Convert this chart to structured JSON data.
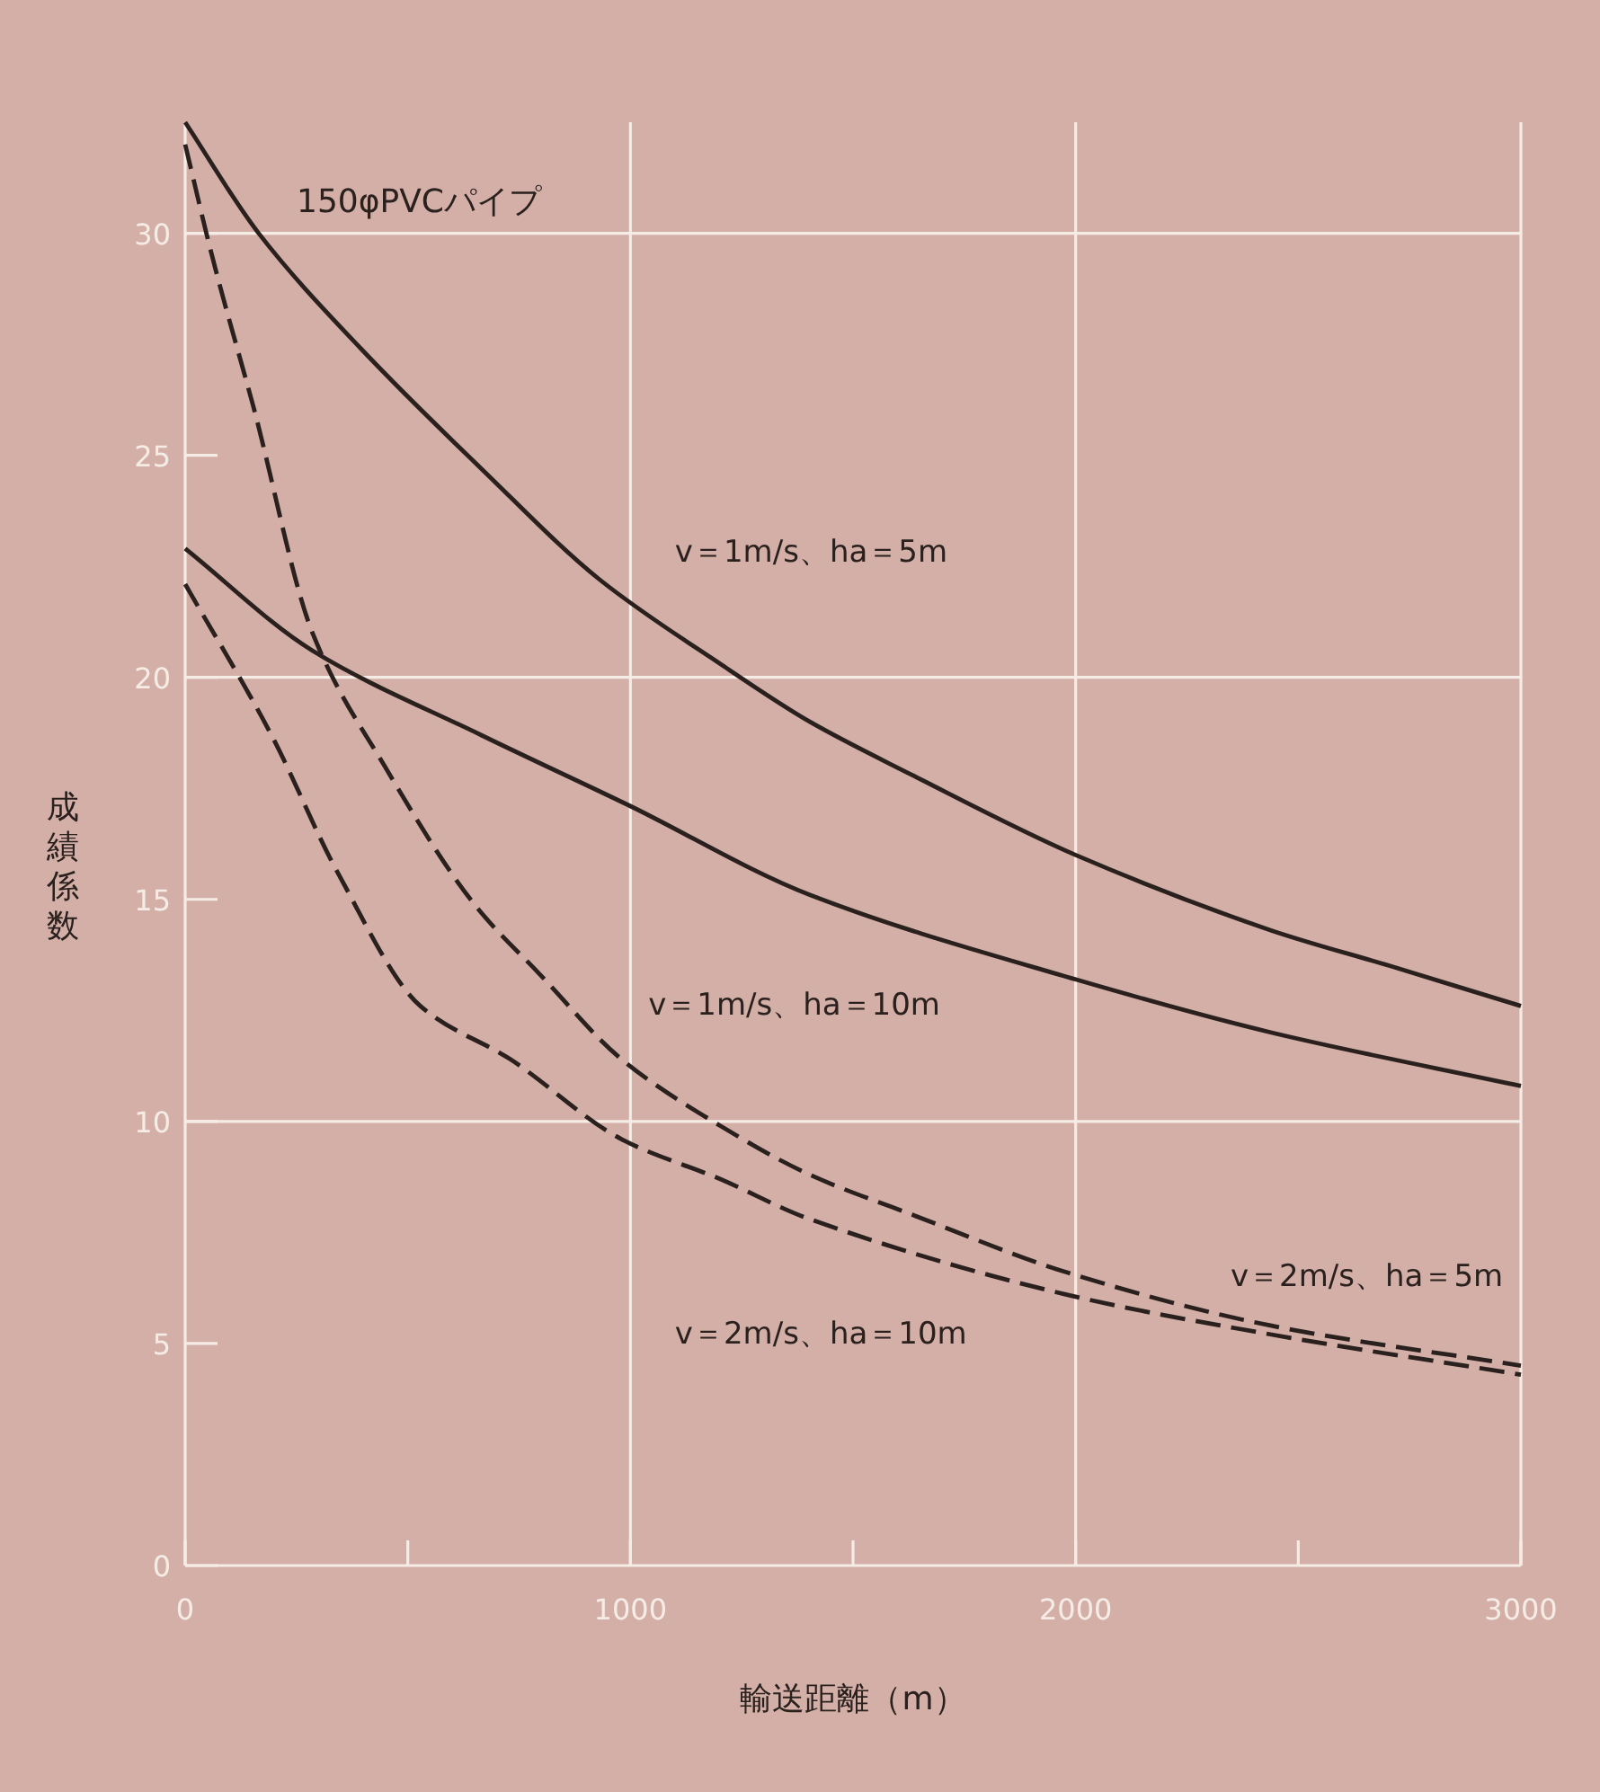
{
  "chart_data": {
    "type": "line",
    "xlabel": "輸送距離（m）",
    "ylabel": "成績係数",
    "annotations": [
      "150φPVCパイプ"
    ],
    "xlim": [
      0,
      3000
    ],
    "ylim": [
      0,
      32.5
    ],
    "xticks": [
      0,
      {
        "value": 500,
        "label": null
      },
      1000,
      {
        "value": 1500,
        "label": null
      },
      2000,
      {
        "value": 2500,
        "label": null
      },
      3000
    ],
    "yticks": [
      0,
      5,
      10,
      15,
      20,
      25,
      30
    ],
    "ref_lines": [
      {
        "axis": "y",
        "value": 10,
        "color": "#f6ece6"
      },
      {
        "axis": "y",
        "value": 20,
        "color": "#f6ece6"
      },
      {
        "axis": "y",
        "value": 30,
        "color": "#f6ece6"
      },
      {
        "axis": "x",
        "value": 1000,
        "color": "#f6ece6"
      },
      {
        "axis": "x",
        "value": 2000,
        "color": "#f6ece6"
      }
    ],
    "series": [
      {
        "name": "v＝1m/s、ha＝5m",
        "color": "#2a201d",
        "line_style": "solid",
        "x": [
          0,
          165,
          395,
          665,
          931,
          1202,
          1403,
          1633,
          2000,
          2440,
          2706,
          3000
        ],
        "values": [
          32.5,
          30.0,
          27.4,
          24.7,
          22.2,
          20.3,
          19.0,
          17.8,
          16.0,
          14.3,
          13.5,
          12.6
        ]
      },
      {
        "name": "v＝1m/s、ha＝10m",
        "color": "#2a201d",
        "line_style": "solid",
        "x": [
          0,
          286,
          665,
          1000,
          1403,
          2000,
          2440,
          3000
        ],
        "values": [
          22.9,
          20.6,
          18.7,
          17.1,
          15.1,
          13.2,
          12.0,
          10.8
        ]
      },
      {
        "name": "v＝2m/s、ha＝5m",
        "color": "#2a201d",
        "line_style": "dashed",
        "x": [
          0,
          60,
          153,
          286,
          448,
          649,
          798,
          980,
          1202,
          1403,
          1633,
          1980,
          2440,
          3000
        ],
        "values": [
          32.0,
          29.5,
          26.1,
          21.0,
          18.0,
          14.9,
          13.3,
          11.4,
          9.9,
          8.8,
          7.9,
          6.6,
          5.4,
          4.5
        ]
      },
      {
        "name": "v＝2m/s、ha＝10m",
        "color": "#2a201d",
        "line_style": "dashed",
        "x": [
          0,
          194,
          343,
          528,
          730,
          980,
          1202,
          1403,
          1980,
          2440,
          3000
        ],
        "values": [
          22.1,
          18.7,
          15.6,
          12.6,
          11.4,
          9.6,
          8.7,
          7.8,
          6.1,
          5.2,
          4.3
        ]
      }
    ]
  }
}
